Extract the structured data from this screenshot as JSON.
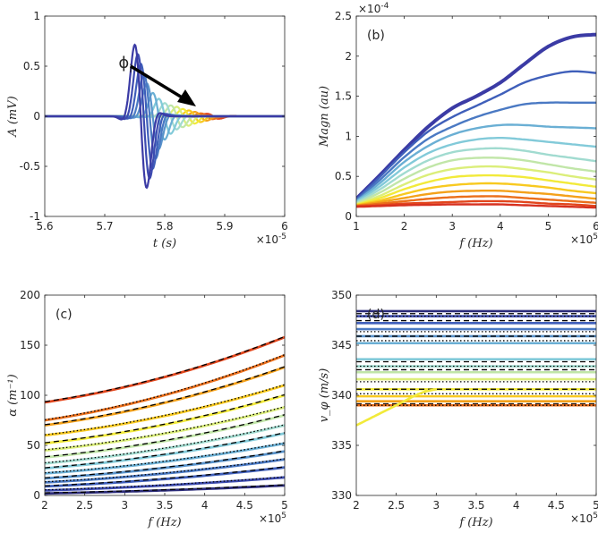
{
  "chart_data": [
    {
      "id": "a",
      "type": "line",
      "title": "",
      "panel_label": "",
      "xlabel": "t (s)",
      "ylabel": "A (mV)",
      "xlim": [
        5.6e-05,
        6e-05
      ],
      "ylim": [
        -1,
        1
      ],
      "xticks": [
        "5.6",
        "5.7",
        "5.8",
        "5.9",
        "6"
      ],
      "yticks": [
        "-1",
        "-0.5",
        "0",
        "0.5",
        "1"
      ],
      "x_exponent": "×10",
      "x_exponent_power": "-5",
      "annotation": "ϕ",
      "annotation_sub": "i",
      "series_note": "15 received pulses at successive positions; amplitude decreases and arrival shifts later from blue to red",
      "pulses": [
        {
          "t0": 5.76e-05,
          "amp": 0.98,
          "color": "#3b3ba5"
        },
        {
          "t0": 5.765e-05,
          "amp": 0.85,
          "color": "#3d4bb0"
        },
        {
          "t0": 5.77e-05,
          "amp": 0.72,
          "color": "#3f5fba"
        },
        {
          "t0": 5.775e-05,
          "amp": 0.58,
          "color": "#4a79c3"
        },
        {
          "t0": 5.78e-05,
          "amp": 0.45,
          "color": "#5993cb"
        },
        {
          "t0": 5.79e-05,
          "amp": 0.32,
          "color": "#6aafd4"
        },
        {
          "t0": 5.8e-05,
          "amp": 0.24,
          "color": "#82cad9"
        },
        {
          "t0": 5.81e-05,
          "amp": 0.18,
          "color": "#a1dbd0"
        },
        {
          "t0": 5.82e-05,
          "amp": 0.15,
          "color": "#c1e6a8"
        },
        {
          "t0": 5.83e-05,
          "amp": 0.13,
          "color": "#dbee7a"
        },
        {
          "t0": 5.84e-05,
          "amp": 0.1,
          "color": "#f2ea3a"
        },
        {
          "t0": 5.85e-05,
          "amp": 0.08,
          "color": "#f8c91f"
        },
        {
          "t0": 5.86e-05,
          "amp": 0.06,
          "color": "#f4a11a"
        },
        {
          "t0": 5.87e-05,
          "amp": 0.04,
          "color": "#eb6f1b"
        },
        {
          "t0": 5.88e-05,
          "amp": 0.03,
          "color": "#e2461c"
        }
      ]
    },
    {
      "id": "b",
      "type": "line",
      "panel_label": "(b)",
      "xlabel": "f (Hz)",
      "ylabel": "Magn (au)",
      "xlim": [
        100000,
        600000
      ],
      "ylim": [
        0,
        0.00025
      ],
      "xticks": [
        "1",
        "2",
        "3",
        "4",
        "5",
        "6"
      ],
      "yticks": [
        "0",
        "0.5",
        "1",
        "1.5",
        "2",
        "2.5"
      ],
      "x_exponent": "×10",
      "x_exponent_power": "5",
      "y_exponent": "×10",
      "y_exponent_power": "-4",
      "x": [
        100000.0,
        150000.0,
        200000.0,
        250000.0,
        300000.0,
        350000.0,
        400000.0,
        450000.0,
        500000.0,
        550000.0,
        600000.0
      ],
      "series": [
        {
          "color": "#3b3ba5",
          "values": [
            2.2e-05,
            5.2e-05,
            8.3e-05,
            0.000112,
            0.000135,
            0.00015,
            0.000167,
            0.00019,
            0.000212,
            0.000224,
            0.000227
          ]
        },
        {
          "color": "#3f5fba",
          "values": [
            2.1e-05,
            5e-05,
            8e-05,
            0.000106,
            0.000124,
            0.000138,
            0.000152,
            0.000167,
            0.000176,
            0.000181,
            0.000179
          ]
        },
        {
          "color": "#4a79c3",
          "values": [
            2e-05,
            4.6e-05,
            7.4e-05,
            9.7e-05,
            0.000112,
            0.000124,
            0.000133,
            0.00014,
            0.000142,
            0.000142,
            0.000142
          ]
        },
        {
          "color": "#6aafd4",
          "values": [
            1.9e-05,
            4.2e-05,
            6.8e-05,
            8.8e-05,
            0.000102,
            0.00011,
            0.000114,
            0.000114,
            0.000112,
            0.000111,
            0.00011
          ]
        },
        {
          "color": "#82cad9",
          "values": [
            1.8e-05,
            3.8e-05,
            6.1e-05,
            7.9e-05,
            9e-05,
            9.6e-05,
            9.8e-05,
            9.6e-05,
            9.3e-05,
            9e-05,
            8.7e-05
          ]
        },
        {
          "color": "#a1dbd0",
          "values": [
            1.7e-05,
            3.4e-05,
            5.4e-05,
            7e-05,
            8e-05,
            8.4e-05,
            8.5e-05,
            8.2e-05,
            7.7e-05,
            7.3e-05,
            6.9e-05
          ]
        },
        {
          "color": "#c1e6a8",
          "values": [
            1.6e-05,
            3e-05,
            4.7e-05,
            6.1e-05,
            7e-05,
            7.3e-05,
            7.3e-05,
            7e-05,
            6.5e-05,
            6e-05,
            5.6e-05
          ]
        },
        {
          "color": "#dbee7a",
          "values": [
            1.5e-05,
            2.6e-05,
            4e-05,
            5.2e-05,
            5.9e-05,
            6.2e-05,
            6.2e-05,
            5.9e-05,
            5.5e-05,
            5e-05,
            4.6e-05
          ]
        },
        {
          "color": "#f2ea3a",
          "values": [
            1.45e-05,
            2.3e-05,
            3.4e-05,
            4.3e-05,
            4.9e-05,
            5.1e-05,
            5.1e-05,
            4.9e-05,
            4.5e-05,
            4.1e-05,
            3.7e-05
          ]
        },
        {
          "color": "#f8c91f",
          "values": [
            1.4e-05,
            2e-05,
            2.8e-05,
            3.5e-05,
            3.9e-05,
            4.1e-05,
            4.1e-05,
            3.9e-05,
            3.6e-05,
            3.2e-05,
            2.9e-05
          ]
        },
        {
          "color": "#f4a11a",
          "values": [
            1.35e-05,
            1.8e-05,
            2.3e-05,
            2.8e-05,
            3.1e-05,
            3.2e-05,
            3.2e-05,
            3e-05,
            2.8e-05,
            2.5e-05,
            2.2e-05
          ]
        },
        {
          "color": "#eb6f1b",
          "values": [
            1.3e-05,
            1.6e-05,
            1.9e-05,
            2.2e-05,
            2.4e-05,
            2.5e-05,
            2.5e-05,
            2.3e-05,
            2.1e-05,
            1.9e-05,
            1.7e-05
          ]
        },
        {
          "color": "#e2461c",
          "values": [
            1.25e-05,
            1.4e-05,
            1.6e-05,
            1.7e-05,
            1.8e-05,
            1.9e-05,
            1.9e-05,
            1.8e-05,
            1.6e-05,
            1.5e-05,
            1.3e-05
          ]
        },
        {
          "color": "#d7301f",
          "values": [
            1.2e-05,
            1.3e-05,
            1.4e-05,
            1.45e-05,
            1.5e-05,
            1.5e-05,
            1.5e-05,
            1.4e-05,
            1.3e-05,
            1.2e-05,
            1.1e-05
          ]
        }
      ]
    },
    {
      "id": "c",
      "type": "line",
      "panel_label": "(c)",
      "xlabel": "f (Hz)",
      "ylabel": "α (m⁻¹)",
      "xlim": [
        200000,
        500000
      ],
      "ylim": [
        0,
        200
      ],
      "xticks": [
        "2",
        "2.5",
        "3",
        "3.5",
        "4",
        "4.5",
        "5"
      ],
      "yticks": [
        "0",
        "50",
        "100",
        "150",
        "200"
      ],
      "x_exponent": "×10",
      "x_exponent_power": "5",
      "fit_styles": [
        "dashed",
        "dotted"
      ],
      "fit_color": "#000000",
      "series": [
        {
          "color": "#e2461c",
          "start": 93,
          "end": 158
        },
        {
          "color": "#eb6f1b",
          "start": 75,
          "end": 140
        },
        {
          "color": "#f4a11a",
          "start": 70,
          "end": 128
        },
        {
          "color": "#f8c91f",
          "start": 60,
          "end": 110
        },
        {
          "color": "#f2ea3a",
          "start": 52,
          "end": 100
        },
        {
          "color": "#dbee7a",
          "start": 45,
          "end": 88
        },
        {
          "color": "#c1e6a8",
          "start": 38,
          "end": 80
        },
        {
          "color": "#a1dbd0",
          "start": 32,
          "end": 70
        },
        {
          "color": "#82cad9",
          "start": 27,
          "end": 62
        },
        {
          "color": "#6aafd4",
          "start": 22,
          "end": 52
        },
        {
          "color": "#5993cb",
          "start": 17,
          "end": 44
        },
        {
          "color": "#4a79c3",
          "start": 13,
          "end": 36
        },
        {
          "color": "#3f5fba",
          "start": 9,
          "end": 28
        },
        {
          "color": "#3d4bb0",
          "start": 5,
          "end": 18
        },
        {
          "color": "#2c2c7a",
          "start": 2,
          "end": 10
        }
      ]
    },
    {
      "id": "d",
      "type": "line",
      "panel_label": "(d)",
      "xlabel": "f (Hz)",
      "ylabel": "v_φ (m/s)",
      "xlim": [
        200000,
        500000
      ],
      "ylim": [
        330,
        350
      ],
      "xticks": [
        "2",
        "2.5",
        "3",
        "3.5",
        "4",
        "4.5",
        "5"
      ],
      "yticks": [
        "330",
        "335",
        "340",
        "345",
        "350"
      ],
      "x_exponent": "×10",
      "x_exponent_power": "5",
      "fit_color": "#000000",
      "series": [
        {
          "color": "#2c2c7a",
          "value": 348.4
        },
        {
          "color": "#3d4bb0",
          "value": 347.9
        },
        {
          "color": "#3f5fba",
          "value": 347.2
        },
        {
          "color": "#4a79c3",
          "value": 346.6
        },
        {
          "color": "#5993cb",
          "value": 345.9
        },
        {
          "color": "#6aafd4",
          "value": 345.2
        },
        {
          "color": "#82cad9",
          "value": 343.6
        },
        {
          "color": "#a1dbd0",
          "value": 342.9
        },
        {
          "color": "#c1e6a8",
          "value": 342.3
        },
        {
          "color": "#dbee7a",
          "value": 341.6
        },
        {
          "color": "#f2ea3a",
          "value": 340.6
        },
        {
          "color": "#f8c91f",
          "value": 339.9
        },
        {
          "color": "#f4a11a",
          "value": 339.4
        },
        {
          "color": "#eb6f1b",
          "value": 339.0
        }
      ],
      "outlier": {
        "color": "#f2ea3a",
        "x": [
          200000,
          220000,
          250000,
          280000,
          300000
        ],
        "values": [
          337.0,
          337.8,
          339.0,
          340.2,
          340.6
        ]
      }
    }
  ]
}
